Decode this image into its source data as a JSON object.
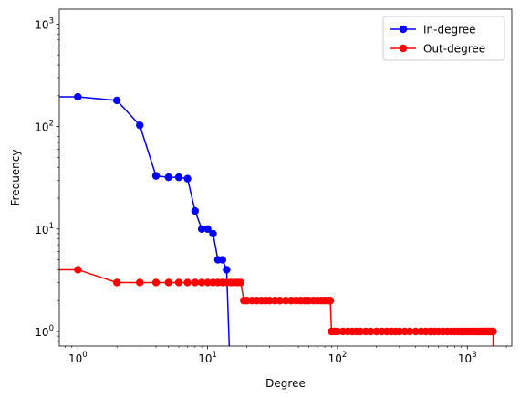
{
  "chart_data": {
    "type": "line",
    "title": "",
    "xlabel": "Degree",
    "ylabel": "Frequency",
    "xscale": "log",
    "yscale": "log",
    "xlim": [
      0.72,
      2200
    ],
    "ylim": [
      0.72,
      1400
    ],
    "grid": false,
    "legend": "top-right",
    "x_ticks": [
      {
        "value": 1,
        "base": "10",
        "exp": "0"
      },
      {
        "value": 10,
        "base": "10",
        "exp": "1"
      },
      {
        "value": 100,
        "base": "10",
        "exp": "2"
      },
      {
        "value": 1000,
        "base": "10",
        "exp": "3"
      }
    ],
    "y_ticks": [
      {
        "value": 1,
        "base": "10",
        "exp": "0"
      },
      {
        "value": 10,
        "base": "10",
        "exp": "1"
      },
      {
        "value": 100,
        "base": "10",
        "exp": "2"
      },
      {
        "value": 1000,
        "base": "10",
        "exp": "3"
      }
    ],
    "series": [
      {
        "name": "In-degree",
        "color": "#0000ff",
        "x": [
          0,
          1,
          2,
          3,
          4,
          5,
          6,
          7,
          8,
          9,
          10,
          11,
          12,
          13,
          14,
          15
        ],
        "y": [
          195,
          195,
          180,
          103,
          33,
          32,
          32,
          31,
          15,
          10,
          10,
          9,
          5,
          5,
          4,
          0
        ],
        "markers": [
          false,
          true,
          true,
          true,
          true,
          true,
          true,
          true,
          true,
          true,
          true,
          true,
          true,
          true,
          true,
          false
        ]
      },
      {
        "name": "Out-degree",
        "color": "#ff0000",
        "x": [
          0,
          1,
          2,
          3,
          4,
          5,
          6,
          7,
          8,
          9,
          10,
          11,
          12,
          13,
          14,
          15,
          16,
          17,
          18,
          19,
          20,
          22,
          24,
          26,
          28,
          30,
          33,
          36,
          40,
          44,
          48,
          52,
          56,
          60,
          65,
          70,
          75,
          80,
          85,
          88,
          90,
          95,
          100,
          110,
          120,
          130,
          140,
          150,
          165,
          180,
          200,
          220,
          240,
          260,
          280,
          300,
          330,
          360,
          400,
          440,
          480,
          520,
          560,
          600,
          650,
          700,
          750,
          800,
          850,
          900,
          950,
          1000,
          1050,
          1100,
          1150,
          1200,
          1250,
          1300,
          1350,
          1400,
          1450,
          1500,
          1550,
          1580,
          1580
        ],
        "y": [
          4,
          4,
          3,
          3,
          3,
          3,
          3,
          3,
          3,
          3,
          3,
          3,
          3,
          3,
          3,
          3,
          3,
          3,
          3,
          2,
          2,
          2,
          2,
          2,
          2,
          2,
          2,
          2,
          2,
          2,
          2,
          2,
          2,
          2,
          2,
          2,
          2,
          2,
          2,
          2,
          1,
          1,
          1,
          1,
          1,
          1,
          1,
          1,
          1,
          1,
          1,
          1,
          1,
          1,
          1,
          1,
          1,
          1,
          1,
          1,
          1,
          1,
          1,
          1,
          1,
          1,
          1,
          1,
          1,
          1,
          1,
          1,
          1,
          1,
          1,
          1,
          1,
          1,
          1,
          1,
          1,
          1,
          1,
          1,
          0
        ],
        "markers": [
          false,
          true,
          true,
          true,
          true,
          true,
          true,
          true,
          true,
          true,
          true,
          true,
          true,
          true,
          true,
          true,
          true,
          true,
          true,
          true,
          true,
          true,
          true,
          true,
          true,
          true,
          true,
          true,
          true,
          true,
          true,
          true,
          true,
          true,
          true,
          true,
          true,
          true,
          true,
          true,
          true,
          true,
          true,
          true,
          true,
          true,
          true,
          true,
          true,
          true,
          true,
          true,
          true,
          true,
          true,
          true,
          true,
          true,
          true,
          true,
          true,
          true,
          true,
          true,
          true,
          true,
          true,
          true,
          true,
          true,
          true,
          true,
          true,
          true,
          true,
          true,
          true,
          true,
          true,
          true,
          true,
          true,
          true,
          true,
          false
        ]
      }
    ]
  }
}
